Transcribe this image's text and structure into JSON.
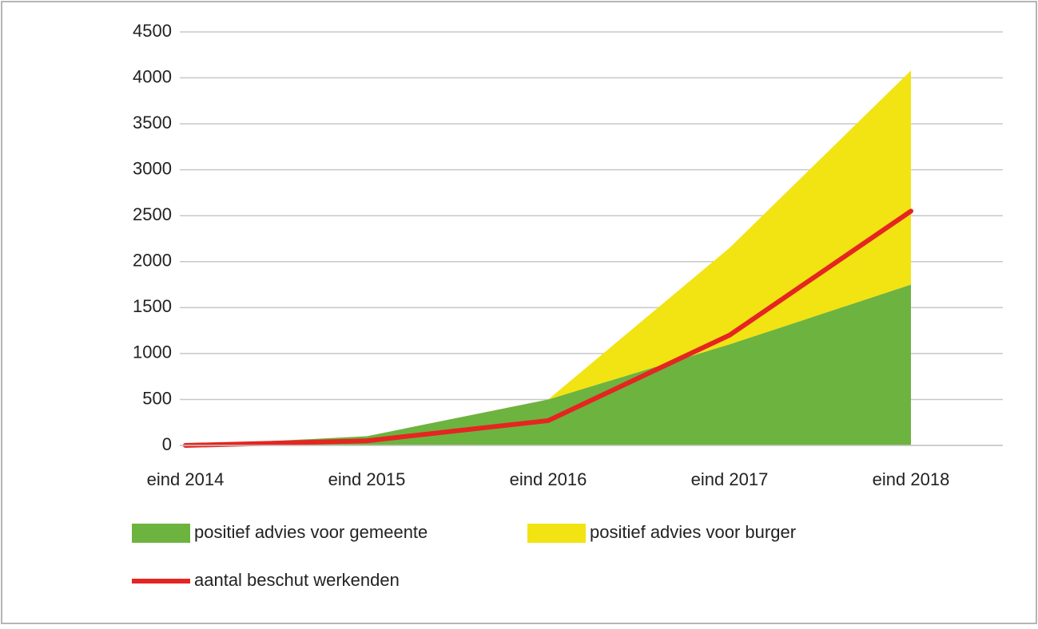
{
  "chart_data": {
    "type": "area",
    "stacked": true,
    "categories": [
      "eind 2014",
      "eind 2015",
      "eind 2016",
      "eind 2017",
      "eind 2018"
    ],
    "series": [
      {
        "name": "positief advies voor gemeente",
        "type": "area",
        "color": "#6db33f",
        "values": [
          0,
          100,
          500,
          1100,
          1750
        ]
      },
      {
        "name": "positief advies voor burger",
        "type": "area",
        "color": "#f2e313",
        "values": [
          0,
          0,
          0,
          1050,
          2330
        ]
      },
      {
        "name": "aantal beschut werkenden",
        "type": "line",
        "color": "#e52521",
        "values": [
          0,
          50,
          270,
          1200,
          2550
        ]
      }
    ],
    "ylim": [
      0,
      4500
    ],
    "yticks": [
      0,
      500,
      1000,
      1500,
      2000,
      2500,
      3000,
      3500,
      4000,
      4500
    ],
    "grid": true
  }
}
